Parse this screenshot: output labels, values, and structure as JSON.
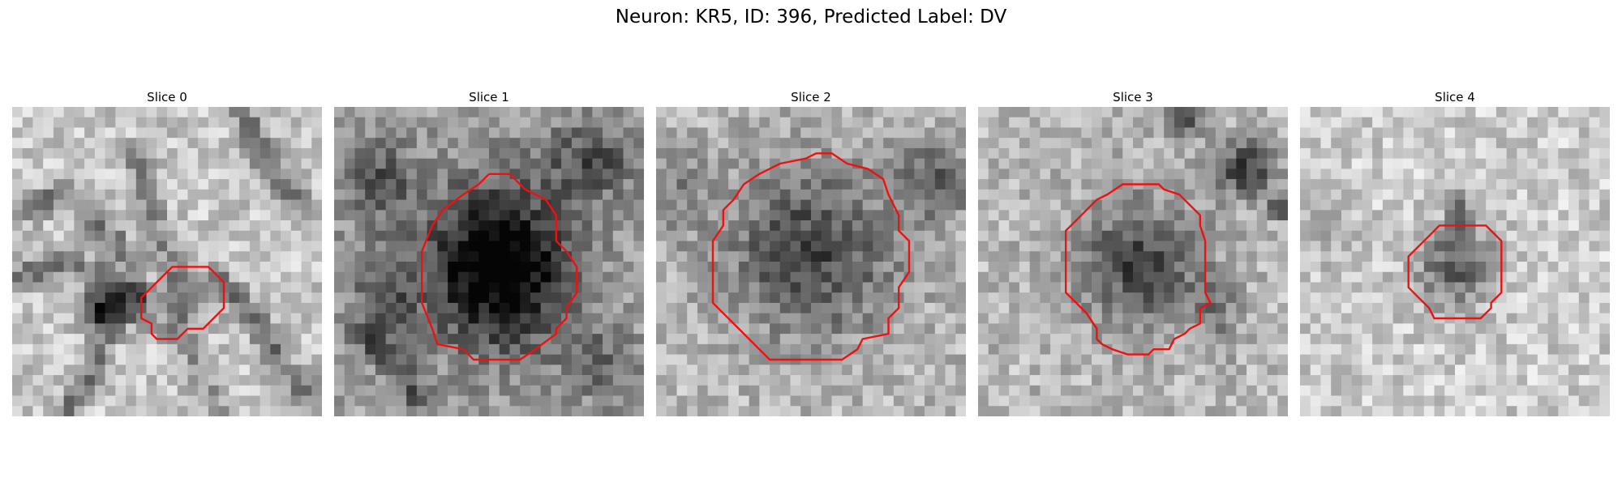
{
  "figure": {
    "title": "Neuron: KR5, ID: 396, Predicted Label: DV"
  },
  "panels": [
    {
      "title": "Slice 0",
      "contour": [
        [
          17,
          15.5
        ],
        [
          19,
          15.5
        ],
        [
          19.5,
          16
        ],
        [
          20.5,
          17
        ],
        [
          20.5,
          18
        ],
        [
          20.5,
          19.5
        ],
        [
          19.5,
          20.5
        ],
        [
          18.5,
          21.5
        ],
        [
          17,
          21.5
        ],
        [
          16.5,
          22
        ],
        [
          16,
          22.5
        ],
        [
          15,
          22.5
        ],
        [
          14,
          22.5
        ],
        [
          13.5,
          22
        ],
        [
          13.5,
          21
        ],
        [
          12.5,
          20.5
        ],
        [
          12.5,
          18.5
        ],
        [
          13.5,
          17.5
        ],
        [
          14.5,
          16.5
        ],
        [
          15.5,
          15.5
        ],
        [
          16.5,
          15.5
        ],
        [
          17,
          15.5
        ]
      ],
      "features": [
        {
          "kind": "dark-line",
          "points": [
            [
              0,
              17
            ],
            [
              4,
              15
            ],
            [
              8,
              16
            ],
            [
              12,
              18
            ]
          ],
          "strength": 0.35
        },
        {
          "kind": "dark-line",
          "points": [
            [
              2,
              10
            ],
            [
              5,
              8
            ],
            [
              9,
              12
            ],
            [
              12,
              15
            ]
          ],
          "strength": 0.3
        },
        {
          "kind": "dark-line",
          "points": [
            [
              12,
              5
            ],
            [
              14,
              12
            ],
            [
              16,
              16
            ]
          ],
          "strength": 0.25
        },
        {
          "kind": "dark-line",
          "points": [
            [
              22,
              0
            ],
            [
              24,
              4
            ],
            [
              26,
              8
            ],
            [
              29,
              10
            ]
          ],
          "strength": 0.35
        },
        {
          "kind": "dark-line",
          "points": [
            [
              20,
              17
            ],
            [
              24,
              21
            ],
            [
              26,
              25
            ],
            [
              29,
              28
            ]
          ],
          "strength": 0.35
        },
        {
          "kind": "dark-line",
          "points": [
            [
              8,
              19
            ],
            [
              9,
              22
            ],
            [
              7,
              27
            ],
            [
              5,
              30
            ]
          ],
          "strength": 0.3
        },
        {
          "kind": "dark-line",
          "points": [
            [
              16,
              22
            ],
            [
              18,
              25
            ],
            [
              20,
              30
            ]
          ],
          "strength": 0.2
        },
        {
          "kind": "blob",
          "cx": 10,
          "cy": 19.5,
          "rx": 3,
          "ry": 1.8,
          "strength": 0.6
        },
        {
          "kind": "blob",
          "cx": 16.5,
          "cy": 19,
          "rx": 3,
          "ry": 3,
          "strength": 0.3
        }
      ],
      "base": 0.78
    },
    {
      "title": "Slice 1",
      "contour": [
        [
          15,
          6.5
        ],
        [
          17,
          6.5
        ],
        [
          18.5,
          8
        ],
        [
          20.5,
          9
        ],
        [
          21.5,
          10.5
        ],
        [
          21.5,
          13
        ],
        [
          22.5,
          14
        ],
        [
          23.5,
          15.5
        ],
        [
          23.5,
          18
        ],
        [
          22.5,
          19.5
        ],
        [
          22.5,
          20.5
        ],
        [
          21.5,
          21.5
        ],
        [
          21.5,
          22
        ],
        [
          19.5,
          23.5
        ],
        [
          18,
          24.5
        ],
        [
          17,
          24.5
        ],
        [
          13.5,
          24.5
        ],
        [
          12.5,
          23.5
        ],
        [
          10,
          23
        ],
        [
          9.5,
          21.5
        ],
        [
          8.5,
          19
        ],
        [
          8.5,
          14
        ],
        [
          9.5,
          11.5
        ],
        [
          10.5,
          10
        ],
        [
          12.5,
          8.5
        ],
        [
          14,
          7.5
        ],
        [
          15,
          6.5
        ]
      ],
      "features": [
        {
          "kind": "blob",
          "cx": 16,
          "cy": 15.5,
          "rx": 7.5,
          "ry": 8,
          "strength": 0.75
        },
        {
          "kind": "blob",
          "cx": 4,
          "cy": 7,
          "rx": 4,
          "ry": 4,
          "strength": 0.3
        },
        {
          "kind": "blob",
          "cx": 25,
          "cy": 5,
          "rx": 5,
          "ry": 4,
          "strength": 0.3
        },
        {
          "kind": "blob",
          "cx": 5,
          "cy": 18,
          "rx": 3,
          "ry": 5,
          "strength": 0.3
        },
        {
          "kind": "blob",
          "cx": 26,
          "cy": 25,
          "rx": 4,
          "ry": 4,
          "strength": 0.2
        },
        {
          "kind": "dark-line",
          "points": [
            [
              3,
              22
            ],
            [
              6,
              25
            ],
            [
              8,
              28
            ]
          ],
          "strength": 0.3
        }
      ],
      "base": 0.62
    },
    {
      "title": "Slice 2",
      "contour": [
        [
          16,
          4.5
        ],
        [
          17,
          4.5
        ],
        [
          18.5,
          5.5
        ],
        [
          20.5,
          6
        ],
        [
          22,
          7
        ],
        [
          22.5,
          8.5
        ],
        [
          23.5,
          10.5
        ],
        [
          23.5,
          12
        ],
        [
          24.5,
          13
        ],
        [
          24.5,
          16
        ],
        [
          23.5,
          17.5
        ],
        [
          23.5,
          19.5
        ],
        [
          22.5,
          20.5
        ],
        [
          22.5,
          22
        ],
        [
          20,
          22.5
        ],
        [
          19.5,
          23.5
        ],
        [
          18,
          24.5
        ],
        [
          13,
          24.5
        ],
        [
          11,
          24.5
        ],
        [
          10,
          23.5
        ],
        [
          9,
          22.5
        ],
        [
          7.5,
          21
        ],
        [
          6.5,
          20
        ],
        [
          5.5,
          19
        ],
        [
          5.5,
          16
        ],
        [
          5.5,
          13
        ],
        [
          6.5,
          11.5
        ],
        [
          6.5,
          10
        ],
        [
          7.5,
          9
        ],
        [
          8.5,
          7.5
        ],
        [
          10,
          6.5
        ],
        [
          11,
          6
        ],
        [
          12,
          5.5
        ],
        [
          14.5,
          5
        ],
        [
          15.5,
          4.5
        ],
        [
          16,
          4.5
        ]
      ],
      "features": [
        {
          "kind": "blob",
          "cx": 15,
          "cy": 14,
          "rx": 9,
          "ry": 9,
          "strength": 0.45
        },
        {
          "kind": "blob",
          "cx": 27,
          "cy": 7,
          "rx": 4,
          "ry": 4,
          "strength": 0.35
        },
        {
          "kind": "blob",
          "cx": 2,
          "cy": 8,
          "rx": 3,
          "ry": 5,
          "strength": 0.2
        }
      ],
      "base": 0.72
    },
    {
      "title": "Slice 3",
      "contour": [
        [
          16.5,
          7.5
        ],
        [
          17.5,
          7.5
        ],
        [
          18,
          8
        ],
        [
          19.5,
          8.5
        ],
        [
          20.5,
          9.5
        ],
        [
          21.5,
          10.5
        ],
        [
          21.5,
          11.5
        ],
        [
          22,
          13
        ],
        [
          22,
          18
        ],
        [
          22.5,
          19
        ],
        [
          21.5,
          19.5
        ],
        [
          21.5,
          21
        ],
        [
          20.5,
          21.5
        ],
        [
          20,
          22
        ],
        [
          19,
          22.5
        ],
        [
          18.5,
          23.5
        ],
        [
          17,
          23.5
        ],
        [
          16.5,
          24
        ],
        [
          14.5,
          24
        ],
        [
          13,
          23.5
        ],
        [
          12,
          23
        ],
        [
          11.5,
          22.5
        ],
        [
          11.5,
          21.5
        ],
        [
          10.5,
          20
        ],
        [
          9.5,
          19
        ],
        [
          8.5,
          18
        ],
        [
          8.5,
          15
        ],
        [
          8.5,
          12
        ],
        [
          9.5,
          11
        ],
        [
          10.5,
          10
        ],
        [
          11.5,
          9
        ],
        [
          12.5,
          8.5
        ],
        [
          14,
          7.5
        ],
        [
          15.5,
          7.5
        ],
        [
          16.5,
          7.5
        ]
      ],
      "features": [
        {
          "kind": "blob",
          "cx": 15.5,
          "cy": 15,
          "rx": 6.5,
          "ry": 6.5,
          "strength": 0.45
        },
        {
          "kind": "blob",
          "cx": 26,
          "cy": 6,
          "rx": 3,
          "ry": 3,
          "strength": 0.5
        },
        {
          "kind": "blob",
          "cx": 20,
          "cy": 1,
          "rx": 2,
          "ry": 2,
          "strength": 0.5
        },
        {
          "kind": "blob",
          "cx": 29,
          "cy": 10,
          "rx": 1,
          "ry": 1,
          "strength": 0.7
        },
        {
          "kind": "blob",
          "cx": 23,
          "cy": 20,
          "rx": 3,
          "ry": 4,
          "strength": 0.2
        }
      ],
      "base": 0.72
    },
    {
      "title": "Slice 4",
      "contour": [
        [
          15,
          11.5
        ],
        [
          17,
          11.5
        ],
        [
          18,
          11.5
        ],
        [
          19.5,
          13
        ],
        [
          19.5,
          15
        ],
        [
          19.5,
          18
        ],
        [
          18.5,
          19
        ],
        [
          18.5,
          19.5
        ],
        [
          17.5,
          20.5
        ],
        [
          16,
          20.5
        ],
        [
          13,
          20.5
        ],
        [
          12.5,
          19.5
        ],
        [
          11.5,
          18.5
        ],
        [
          10.5,
          17.5
        ],
        [
          10.5,
          16
        ],
        [
          10.5,
          14.5
        ],
        [
          11.5,
          13.5
        ],
        [
          12.5,
          12.5
        ],
        [
          13.5,
          11.5
        ],
        [
          15,
          11.5
        ]
      ],
      "features": [
        {
          "kind": "blob",
          "cx": 15,
          "cy": 15.5,
          "rx": 4,
          "ry": 4,
          "strength": 0.45
        },
        {
          "kind": "blob",
          "cx": 15.5,
          "cy": 10,
          "rx": 1,
          "ry": 2,
          "strength": 0.5
        },
        {
          "kind": "blob",
          "cx": 3,
          "cy": 12,
          "rx": 3,
          "ry": 5,
          "strength": 0.12
        }
      ],
      "base": 0.8
    }
  ],
  "colors": {
    "contour": "#ee1111"
  }
}
